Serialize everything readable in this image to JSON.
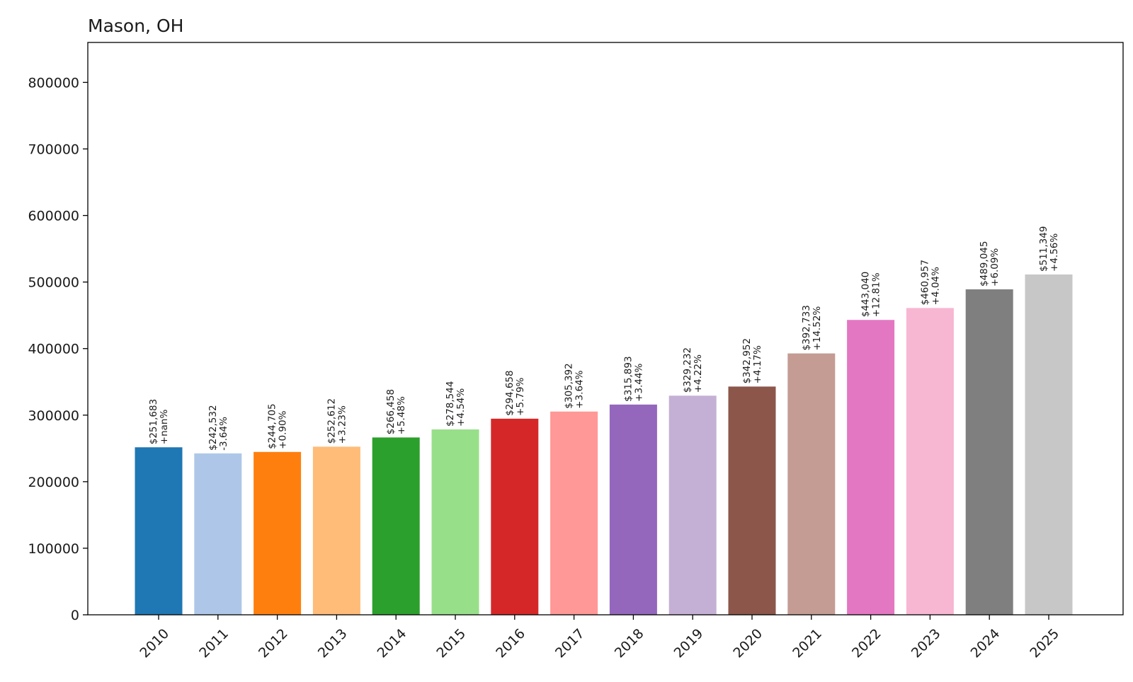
{
  "chart_data": {
    "type": "bar",
    "title": "Mason, OH",
    "xlabel": "",
    "ylabel": "",
    "ylim": [
      0,
      860000
    ],
    "yticks": [
      0,
      100000,
      200000,
      300000,
      400000,
      500000,
      600000,
      700000,
      800000
    ],
    "grid": false,
    "categories": [
      "2010",
      "2011",
      "2012",
      "2013",
      "2014",
      "2015",
      "2016",
      "2017",
      "2018",
      "2019",
      "2020",
      "2021",
      "2022",
      "2023",
      "2024",
      "2025"
    ],
    "values": [
      251683,
      242532,
      244705,
      252612,
      266458,
      278544,
      294658,
      305392,
      315893,
      329232,
      342952,
      392733,
      443040,
      460957,
      489045,
      511349
    ],
    "value_labels": [
      "$251,683",
      "$242,532",
      "$244,705",
      "$252,612",
      "$266,458",
      "$278,544",
      "$294,658",
      "$305,392",
      "$315,893",
      "$329,232",
      "$342,952",
      "$392,733",
      "$443,040",
      "$460,957",
      "$489,045",
      "$511,349"
    ],
    "change_labels": [
      "+nan%",
      "-3.64%",
      "+0.90%",
      "+3.23%",
      "+5.48%",
      "+4.54%",
      "+5.79%",
      "+3.64%",
      "+3.44%",
      "+4.22%",
      "+4.17%",
      "+14.52%",
      "+12.81%",
      "+4.04%",
      "+6.09%",
      "+4.56%"
    ],
    "colors": [
      "#1f77b4",
      "#aec7e8",
      "#ff7f0e",
      "#ffbb78",
      "#2ca02c",
      "#98df8a",
      "#d62728",
      "#ff9896",
      "#9467bd",
      "#c5b0d5",
      "#8c564b",
      "#c49c94",
      "#e377c2",
      "#f7b6d2",
      "#7f7f7f",
      "#c7c7c7"
    ]
  }
}
